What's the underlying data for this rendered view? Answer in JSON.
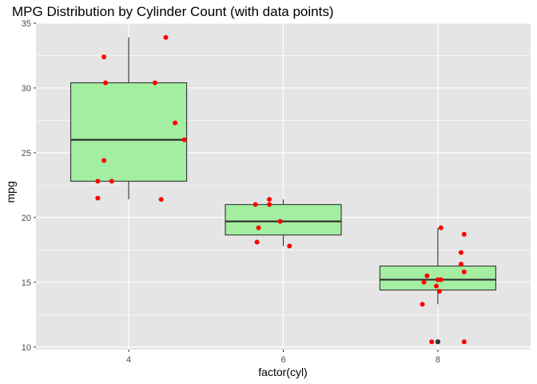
{
  "chart_data": {
    "type": "boxplot",
    "title": "MPG Distribution by Cylinder Count (with data points)",
    "xlabel": "factor(cyl)",
    "ylabel": "mpg",
    "categories": [
      "4",
      "6",
      "8"
    ],
    "ylim": [
      9.8,
      35
    ],
    "yticks": [
      10,
      15,
      20,
      25,
      30,
      35
    ],
    "grid": true,
    "panel_background": "#e5e5e5",
    "grid_color": "#ffffff",
    "box_fill": "#a3eea0",
    "box_stroke": "#333333",
    "point_color": "#ff0000",
    "outlier_color": "#333333",
    "boxes": [
      {
        "category": "4",
        "whisker_low": 21.4,
        "q1": 22.8,
        "median": 26.0,
        "q3": 30.4,
        "whisker_high": 33.9,
        "outliers": []
      },
      {
        "category": "6",
        "whisker_low": 17.8,
        "q1": 18.65,
        "median": 19.7,
        "q3": 21.0,
        "whisker_high": 21.4,
        "outliers": []
      },
      {
        "category": "8",
        "whisker_low": 13.3,
        "q1": 14.4,
        "median": 15.2,
        "q3": 16.25,
        "whisker_high": 19.2,
        "outliers": [
          10.4,
          10.4
        ]
      }
    ],
    "points": [
      {
        "category": "4",
        "jitter": 0.24,
        "mpg": 33.9
      },
      {
        "category": "4",
        "jitter": -0.16,
        "mpg": 32.4
      },
      {
        "category": "4",
        "jitter": -0.15,
        "mpg": 30.4
      },
      {
        "category": "4",
        "jitter": 0.17,
        "mpg": 30.4
      },
      {
        "category": "4",
        "jitter": 0.3,
        "mpg": 27.3
      },
      {
        "category": "4",
        "jitter": 0.36,
        "mpg": 26.0
      },
      {
        "category": "4",
        "jitter": -0.16,
        "mpg": 24.4
      },
      {
        "category": "4",
        "jitter": -0.2,
        "mpg": 22.8
      },
      {
        "category": "4",
        "jitter": -0.11,
        "mpg": 22.8
      },
      {
        "category": "4",
        "jitter": -0.2,
        "mpg": 21.5
      },
      {
        "category": "4",
        "jitter": 0.21,
        "mpg": 21.4
      },
      {
        "category": "6",
        "jitter": -0.18,
        "mpg": 21.0
      },
      {
        "category": "6",
        "jitter": -0.09,
        "mpg": 21.0
      },
      {
        "category": "6",
        "jitter": -0.09,
        "mpg": 21.4
      },
      {
        "category": "6",
        "jitter": -0.02,
        "mpg": 19.7
      },
      {
        "category": "6",
        "jitter": -0.16,
        "mpg": 19.2
      },
      {
        "category": "6",
        "jitter": -0.17,
        "mpg": 18.1
      },
      {
        "category": "6",
        "jitter": 0.04,
        "mpg": 17.8
      },
      {
        "category": "8",
        "jitter": 0.02,
        "mpg": 19.2
      },
      {
        "category": "8",
        "jitter": 0.17,
        "mpg": 18.7
      },
      {
        "category": "8",
        "jitter": 0.15,
        "mpg": 17.3
      },
      {
        "category": "8",
        "jitter": 0.15,
        "mpg": 16.4
      },
      {
        "category": "8",
        "jitter": 0.17,
        "mpg": 15.8
      },
      {
        "category": "8",
        "jitter": -0.07,
        "mpg": 15.5
      },
      {
        "category": "8",
        "jitter": 0.0,
        "mpg": 15.2
      },
      {
        "category": "8",
        "jitter": 0.02,
        "mpg": 15.2
      },
      {
        "category": "8",
        "jitter": -0.09,
        "mpg": 15.0
      },
      {
        "category": "8",
        "jitter": -0.01,
        "mpg": 14.7
      },
      {
        "category": "8",
        "jitter": 0.01,
        "mpg": 14.3
      },
      {
        "category": "8",
        "jitter": -0.1,
        "mpg": 13.3
      },
      {
        "category": "8",
        "jitter": -0.04,
        "mpg": 10.4
      },
      {
        "category": "8",
        "jitter": 0.17,
        "mpg": 10.4
      }
    ]
  }
}
